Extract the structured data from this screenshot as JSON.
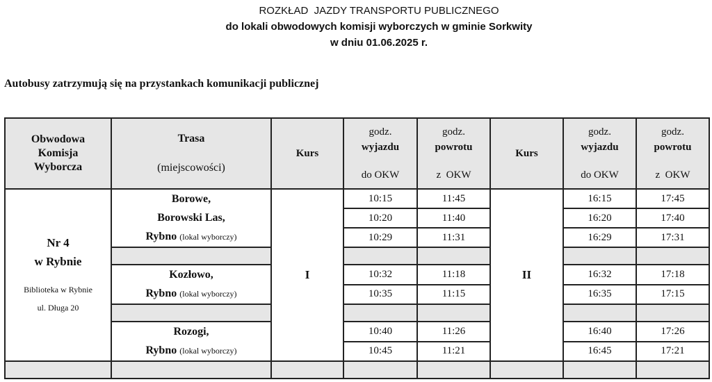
{
  "title": {
    "line1": "ROZKŁAD  JAZDY TRANSPORTU PUBLICZNEGO",
    "line2": "do lokali obwodowych komisji wyborczych w gminie Sorkwity",
    "line3": "w dniu 01.06.2025 r."
  },
  "subtitle": "Autobusy zatrzymują się na przystankach komunikacji publicznej",
  "headers": {
    "okw": [
      "Obwodowa",
      "Komisja",
      "Wyborcza"
    ],
    "trasa": "Trasa",
    "trasa_sub": "(miejscowości)",
    "kurs": "Kurs",
    "godz": "godz.",
    "wyjazdu": "wyjazdu",
    "powrotu": "powrotu",
    "do_okw": "do OKW",
    "z_okw": "z  OKW"
  },
  "okw": {
    "name1": "Nr 4",
    "name2": "w Rybnie",
    "place": "Biblioteka w Rybnie",
    "address": "ul. Długa 20"
  },
  "routes": [
    {
      "stops": [
        "Borowe,",
        "Borowski Las,",
        "Rybno"
      ]
    },
    {
      "stops": [
        "Kozłowo,",
        "Rybno"
      ]
    },
    {
      "stops": [
        "Rozogi,",
        "Rybno"
      ]
    }
  ],
  "lokal_note": "(lokal wyborczy)",
  "kurs1": "I",
  "kurs2": "II",
  "times": [
    [
      "10:15",
      "11:45",
      "16:15",
      "17:45"
    ],
    [
      "10:20",
      "11:40",
      "16:20",
      "17:40"
    ],
    [
      "10:29",
      "11:31",
      "16:29",
      "17:31"
    ],
    [
      "10:32",
      "11:18",
      "16:32",
      "17:18"
    ],
    [
      "10:35",
      "11:15",
      "16:35",
      "17:15"
    ],
    [
      "10:40",
      "11:26",
      "16:40",
      "17:26"
    ],
    [
      "10:45",
      "11:21",
      "16:45",
      "17:21"
    ]
  ]
}
